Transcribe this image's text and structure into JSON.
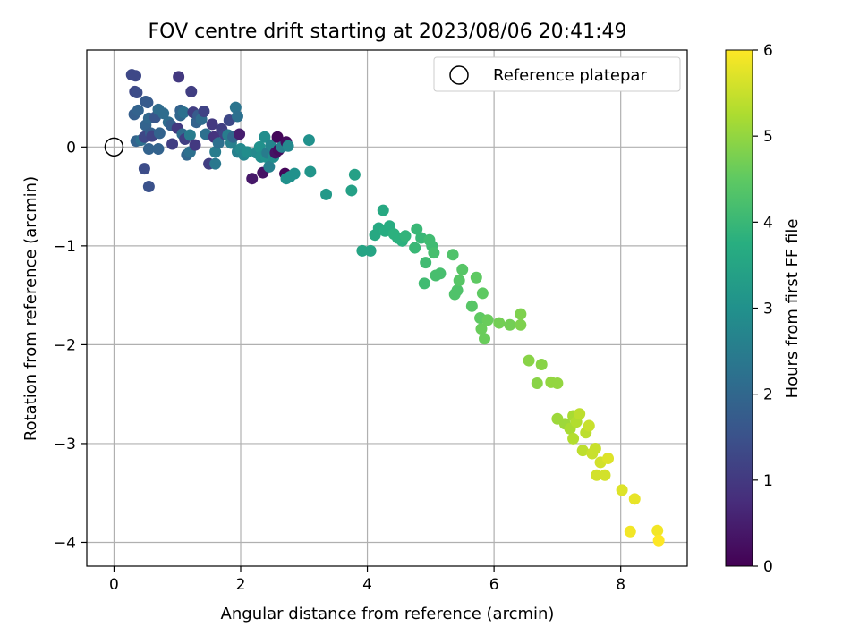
{
  "chart_data": {
    "type": "scatter",
    "title": "FOV centre drift starting at 2023/08/06 20:41:49",
    "xlabel": "Angular distance from reference (arcmin)",
    "ylabel": "Rotation from reference (arcmin)",
    "xlim": [
      -0.43,
      9.05
    ],
    "ylim": [
      -4.24,
      0.98
    ],
    "xticks": [
      0,
      2,
      4,
      6,
      8
    ],
    "yticks": [
      0,
      -1,
      -2,
      -3,
      -4
    ],
    "grid": true,
    "legend": {
      "placement": "top-right",
      "entries": [
        "Reference platepar"
      ]
    },
    "colorbar": {
      "label": "Hours from first FF file",
      "min": 0,
      "max": 6,
      "ticks": [
        0,
        1,
        2,
        3,
        4,
        5,
        6
      ],
      "colormap": "viridis"
    },
    "reference_point": {
      "x": 0,
      "y": 0,
      "label": "Reference platepar"
    },
    "points": [
      {
        "x": 0.34,
        "y": 0.72,
        "h": 1.3
      },
      {
        "x": 0.28,
        "y": 0.73,
        "h": 1.3
      },
      {
        "x": 0.33,
        "y": 0.56,
        "h": 1.3
      },
      {
        "x": 0.36,
        "y": 0.55,
        "h": 1.4
      },
      {
        "x": 0.32,
        "y": 0.33,
        "h": 1.8
      },
      {
        "x": 0.38,
        "y": 0.37,
        "h": 1.9
      },
      {
        "x": 0.35,
        "y": 0.06,
        "h": 1.9
      },
      {
        "x": 0.43,
        "y": 0.07,
        "h": 2.2
      },
      {
        "x": 0.48,
        "y": 0.1,
        "h": 1.3
      },
      {
        "x": 0.5,
        "y": 0.22,
        "h": 1.9
      },
      {
        "x": 0.53,
        "y": 0.45,
        "h": 1.7
      },
      {
        "x": 0.5,
        "y": 0.46,
        "h": 1.7
      },
      {
        "x": 0.55,
        "y": 0.29,
        "h": 2.0
      },
      {
        "x": 0.58,
        "y": 0.14,
        "h": 1.8
      },
      {
        "x": 0.6,
        "y": 0.11,
        "h": 1.2
      },
      {
        "x": 0.48,
        "y": -0.22,
        "h": 1.4
      },
      {
        "x": 0.55,
        "y": -0.4,
        "h": 1.5
      },
      {
        "x": 0.55,
        "y": -0.02,
        "h": 1.9
      },
      {
        "x": 0.65,
        "y": 0.3,
        "h": 1.6
      },
      {
        "x": 0.7,
        "y": 0.38,
        "h": 2.1
      },
      {
        "x": 0.72,
        "y": 0.14,
        "h": 1.9
      },
      {
        "x": 0.7,
        "y": -0.02,
        "h": 1.9
      },
      {
        "x": 0.78,
        "y": 0.34,
        "h": 2.1
      },
      {
        "x": 0.86,
        "y": 0.25,
        "h": 2.1
      },
      {
        "x": 0.9,
        "y": 0.22,
        "h": 1.8
      },
      {
        "x": 0.92,
        "y": 0.03,
        "h": 1.1
      },
      {
        "x": 1.0,
        "y": 0.19,
        "h": 1.0
      },
      {
        "x": 1.02,
        "y": 0.71,
        "h": 1.0
      },
      {
        "x": 1.05,
        "y": 0.37,
        "h": 1.9
      },
      {
        "x": 1.05,
        "y": 0.32,
        "h": 2.0
      },
      {
        "x": 1.1,
        "y": 0.35,
        "h": 2.2
      },
      {
        "x": 1.08,
        "y": 0.13,
        "h": 2.1
      },
      {
        "x": 1.12,
        "y": 0.08,
        "h": 1.1
      },
      {
        "x": 1.15,
        "y": -0.08,
        "h": 2.0
      },
      {
        "x": 1.2,
        "y": -0.05,
        "h": 2.2
      },
      {
        "x": 1.2,
        "y": 0.12,
        "h": 2.5
      },
      {
        "x": 1.22,
        "y": 0.56,
        "h": 1.1
      },
      {
        "x": 1.25,
        "y": 0.35,
        "h": 1.1
      },
      {
        "x": 1.28,
        "y": 0.02,
        "h": 1.0
      },
      {
        "x": 1.3,
        "y": 0.25,
        "h": 1.9
      },
      {
        "x": 1.33,
        "y": 0.32,
        "h": 1.7
      },
      {
        "x": 1.38,
        "y": 0.28,
        "h": 2.1
      },
      {
        "x": 1.42,
        "y": 0.36,
        "h": 1.2
      },
      {
        "x": 1.45,
        "y": 0.13,
        "h": 2.2
      },
      {
        "x": 1.5,
        "y": -0.17,
        "h": 1.1
      },
      {
        "x": 1.55,
        "y": 0.23,
        "h": 1.0
      },
      {
        "x": 1.58,
        "y": 0.1,
        "h": 0.9
      },
      {
        "x": 1.6,
        "y": -0.05,
        "h": 2.5
      },
      {
        "x": 1.6,
        "y": -0.17,
        "h": 2.4
      },
      {
        "x": 1.65,
        "y": 0.04,
        "h": 2.2
      },
      {
        "x": 1.7,
        "y": 0.18,
        "h": 1.1
      },
      {
        "x": 1.75,
        "y": 0.13,
        "h": 1.2
      },
      {
        "x": 1.8,
        "y": 0.12,
        "h": 2.5
      },
      {
        "x": 1.82,
        "y": 0.27,
        "h": 1.3
      },
      {
        "x": 1.85,
        "y": 0.04,
        "h": 2.6
      },
      {
        "x": 1.88,
        "y": 0.1,
        "h": 2.0
      },
      {
        "x": 1.92,
        "y": 0.4,
        "h": 2.3
      },
      {
        "x": 1.95,
        "y": 0.31,
        "h": 2.2
      },
      {
        "x": 1.95,
        "y": -0.05,
        "h": 2.6
      },
      {
        "x": 1.98,
        "y": 0.13,
        "h": 0.5
      },
      {
        "x": 2.0,
        "y": -0.02,
        "h": 2.8
      },
      {
        "x": 2.05,
        "y": -0.08,
        "h": 2.7
      },
      {
        "x": 2.1,
        "y": -0.05,
        "h": 2.9
      },
      {
        "x": 2.18,
        "y": -0.32,
        "h": 0.4
      },
      {
        "x": 2.25,
        "y": -0.06,
        "h": 2.8
      },
      {
        "x": 2.3,
        "y": 0.0,
        "h": 3.0
      },
      {
        "x": 2.32,
        "y": -0.1,
        "h": 2.9
      },
      {
        "x": 2.35,
        "y": -0.26,
        "h": 0.3
      },
      {
        "x": 2.38,
        "y": 0.1,
        "h": 2.9
      },
      {
        "x": 2.4,
        "y": -0.1,
        "h": 3.0
      },
      {
        "x": 2.42,
        "y": -0.06,
        "h": 2.5
      },
      {
        "x": 2.45,
        "y": -0.2,
        "h": 2.6
      },
      {
        "x": 2.48,
        "y": 0.02,
        "h": 2.7
      },
      {
        "x": 2.52,
        "y": -0.1,
        "h": 2.9
      },
      {
        "x": 2.55,
        "y": -0.06,
        "h": 0.3
      },
      {
        "x": 2.58,
        "y": 0.1,
        "h": 0.1
      },
      {
        "x": 2.6,
        "y": -0.03,
        "h": 0.2
      },
      {
        "x": 2.65,
        "y": 0.0,
        "h": 2.6
      },
      {
        "x": 2.7,
        "y": -0.27,
        "h": 0.1
      },
      {
        "x": 2.72,
        "y": 0.05,
        "h": 0.2
      },
      {
        "x": 2.75,
        "y": 0.01,
        "h": 2.8
      },
      {
        "x": 2.72,
        "y": -0.32,
        "h": 3.0
      },
      {
        "x": 2.78,
        "y": -0.3,
        "h": 3.0
      },
      {
        "x": 2.85,
        "y": -0.27,
        "h": 3.0
      },
      {
        "x": 3.08,
        "y": 0.07,
        "h": 3.0
      },
      {
        "x": 3.1,
        "y": -0.25,
        "h": 3.1
      },
      {
        "x": 3.35,
        "y": -0.48,
        "h": 3.2
      },
      {
        "x": 3.75,
        "y": -0.44,
        "h": 3.4
      },
      {
        "x": 3.8,
        "y": -0.28,
        "h": 3.4
      },
      {
        "x": 3.92,
        "y": -1.05,
        "h": 3.5
      },
      {
        "x": 4.05,
        "y": -1.05,
        "h": 3.5
      },
      {
        "x": 4.12,
        "y": -0.89,
        "h": 3.6
      },
      {
        "x": 4.18,
        "y": -0.82,
        "h": 3.6
      },
      {
        "x": 4.25,
        "y": -0.64,
        "h": 3.6
      },
      {
        "x": 4.28,
        "y": -0.85,
        "h": 3.7
      },
      {
        "x": 4.35,
        "y": -0.8,
        "h": 3.7
      },
      {
        "x": 4.42,
        "y": -0.88,
        "h": 3.8
      },
      {
        "x": 4.48,
        "y": -0.92,
        "h": 3.8
      },
      {
        "x": 4.55,
        "y": -0.95,
        "h": 3.8
      },
      {
        "x": 4.6,
        "y": -0.9,
        "h": 3.9
      },
      {
        "x": 4.75,
        "y": -1.02,
        "h": 4.0
      },
      {
        "x": 4.78,
        "y": -0.83,
        "h": 4.0
      },
      {
        "x": 4.85,
        "y": -0.92,
        "h": 4.0
      },
      {
        "x": 4.9,
        "y": -1.38,
        "h": 4.1
      },
      {
        "x": 4.92,
        "y": -1.17,
        "h": 4.1
      },
      {
        "x": 4.98,
        "y": -0.94,
        "h": 4.1
      },
      {
        "x": 5.02,
        "y": -1.0,
        "h": 4.1
      },
      {
        "x": 5.05,
        "y": -1.07,
        "h": 4.2
      },
      {
        "x": 5.08,
        "y": -1.3,
        "h": 4.2
      },
      {
        "x": 5.15,
        "y": -1.28,
        "h": 4.2
      },
      {
        "x": 5.35,
        "y": -1.09,
        "h": 4.3
      },
      {
        "x": 5.38,
        "y": -1.49,
        "h": 4.3
      },
      {
        "x": 5.42,
        "y": -1.45,
        "h": 4.3
      },
      {
        "x": 5.45,
        "y": -1.35,
        "h": 4.4
      },
      {
        "x": 5.5,
        "y": -1.24,
        "h": 4.4
      },
      {
        "x": 5.65,
        "y": -1.61,
        "h": 4.4
      },
      {
        "x": 5.72,
        "y": -1.32,
        "h": 4.5
      },
      {
        "x": 5.78,
        "y": -1.73,
        "h": 4.5
      },
      {
        "x": 5.82,
        "y": -1.48,
        "h": 4.5
      },
      {
        "x": 5.8,
        "y": -1.84,
        "h": 4.6
      },
      {
        "x": 5.85,
        "y": -1.94,
        "h": 4.6
      },
      {
        "x": 5.9,
        "y": -1.75,
        "h": 4.6
      },
      {
        "x": 6.08,
        "y": -1.78,
        "h": 4.7
      },
      {
        "x": 6.25,
        "y": -1.8,
        "h": 4.7
      },
      {
        "x": 6.42,
        "y": -1.69,
        "h": 4.8
      },
      {
        "x": 6.42,
        "y": -1.8,
        "h": 4.8
      },
      {
        "x": 6.55,
        "y": -2.16,
        "h": 4.9
      },
      {
        "x": 6.68,
        "y": -2.39,
        "h": 4.9
      },
      {
        "x": 6.75,
        "y": -2.2,
        "h": 4.9
      },
      {
        "x": 6.9,
        "y": -2.38,
        "h": 5.0
      },
      {
        "x": 7.0,
        "y": -2.39,
        "h": 5.0
      },
      {
        "x": 7.0,
        "y": -2.75,
        "h": 5.1
      },
      {
        "x": 7.12,
        "y": -2.8,
        "h": 5.1
      },
      {
        "x": 7.2,
        "y": -2.85,
        "h": 5.2
      },
      {
        "x": 7.25,
        "y": -2.72,
        "h": 5.2
      },
      {
        "x": 7.25,
        "y": -2.95,
        "h": 5.3
      },
      {
        "x": 7.3,
        "y": -2.78,
        "h": 5.3
      },
      {
        "x": 7.35,
        "y": -2.7,
        "h": 5.4
      },
      {
        "x": 7.4,
        "y": -3.07,
        "h": 5.4
      },
      {
        "x": 7.45,
        "y": -2.89,
        "h": 5.4
      },
      {
        "x": 7.5,
        "y": -2.82,
        "h": 5.5
      },
      {
        "x": 7.55,
        "y": -3.1,
        "h": 5.5
      },
      {
        "x": 7.6,
        "y": -3.05,
        "h": 5.5
      },
      {
        "x": 7.62,
        "y": -3.32,
        "h": 5.6
      },
      {
        "x": 7.68,
        "y": -3.19,
        "h": 5.6
      },
      {
        "x": 7.75,
        "y": -3.32,
        "h": 5.6
      },
      {
        "x": 7.8,
        "y": -3.15,
        "h": 5.7
      },
      {
        "x": 8.02,
        "y": -3.47,
        "h": 5.7
      },
      {
        "x": 8.15,
        "y": -3.89,
        "h": 5.9
      },
      {
        "x": 8.22,
        "y": -3.56,
        "h": 5.8
      },
      {
        "x": 8.58,
        "y": -3.88,
        "h": 5.9
      },
      {
        "x": 8.6,
        "y": -3.98,
        "h": 6.0
      }
    ]
  }
}
